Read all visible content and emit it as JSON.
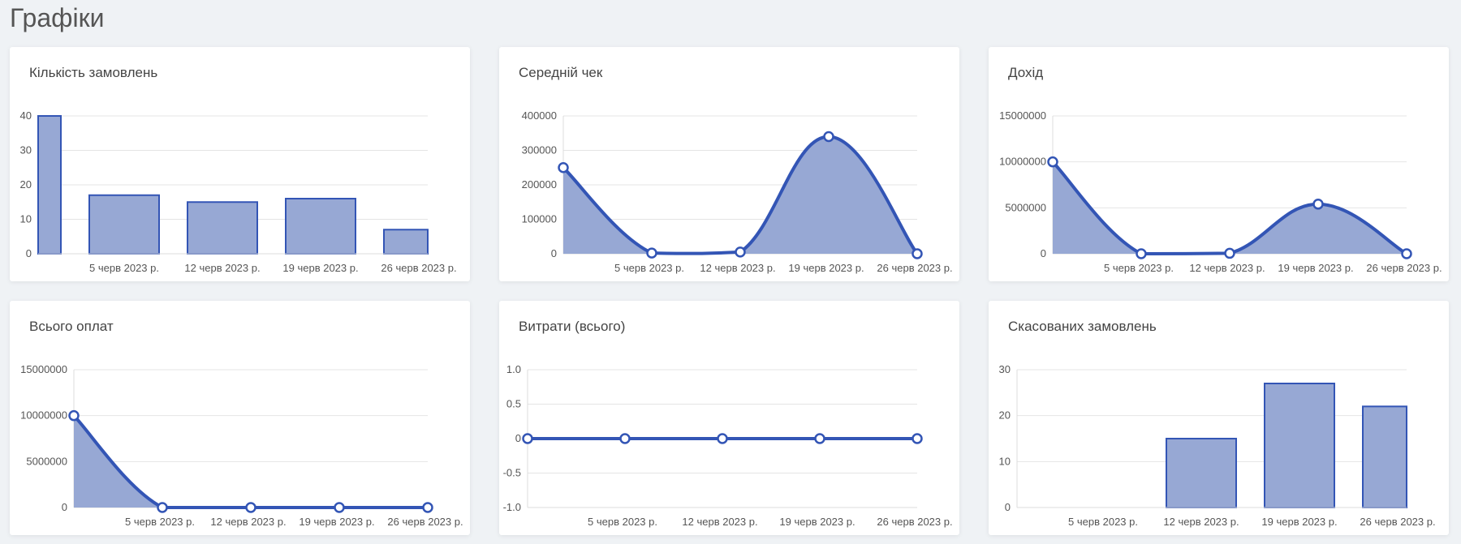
{
  "page": {
    "title": "Графіки"
  },
  "chart_data": [
    {
      "id": "orders",
      "type": "bar",
      "title": "Кількість замовлень",
      "categories": [
        "",
        "5 черв 2023 р.",
        "12 черв 2023 р.",
        "19 черв 2023 р.",
        "26 черв 2023 р."
      ],
      "values": [
        40,
        17,
        15,
        16,
        7
      ],
      "yticks": [
        "40",
        "30",
        "20",
        "10",
        "0"
      ],
      "ylim": [
        0,
        40
      ],
      "fill": "#97a8d4",
      "stroke": "#3355b5"
    },
    {
      "id": "avg-check",
      "type": "area",
      "title": "Середній чек",
      "categories": [
        "",
        "5 черв 2023 р.",
        "12 черв 2023 р.",
        "19 черв 2023 р.",
        "26 черв 2023 р."
      ],
      "values": [
        250000,
        2000,
        5000,
        340000,
        0
      ],
      "yticks": [
        "400000",
        "300000",
        "200000",
        "100000",
        "0"
      ],
      "ylim": [
        0,
        400000
      ],
      "fill": "#97a8d4",
      "stroke": "#3355b5"
    },
    {
      "id": "income",
      "type": "area",
      "title": "Дохід",
      "categories": [
        "",
        "5 черв 2023 р.",
        "12 черв 2023 р.",
        "19 черв 2023 р.",
        "26 черв 2023 р."
      ],
      "values": [
        10000000,
        0,
        50000,
        5400000,
        0
      ],
      "yticks": [
        "15000000",
        "10000000",
        "5000000",
        "0"
      ],
      "ylim": [
        0,
        15000000
      ],
      "fill": "#97a8d4",
      "stroke": "#3355b5"
    },
    {
      "id": "payments",
      "type": "area",
      "title": "Всього оплат",
      "categories": [
        "",
        "5 черв 2023 р.",
        "12 черв 2023 р.",
        "19 черв 2023 р.",
        "26 черв 2023 р."
      ],
      "values": [
        10000000,
        0,
        0,
        0,
        0
      ],
      "yticks": [
        "15000000",
        "10000000",
        "5000000",
        "0"
      ],
      "ylim": [
        0,
        15000000
      ],
      "fill": "#97a8d4",
      "stroke": "#3355b5"
    },
    {
      "id": "expenses",
      "type": "line",
      "title": "Витрати (всього)",
      "categories": [
        "",
        "5 черв 2023 р.",
        "12 черв 2023 р.",
        "19 черв 2023 р.",
        "26 черв 2023 р."
      ],
      "values": [
        0,
        0,
        0,
        0,
        0
      ],
      "yticks": [
        "1.0",
        "0.5",
        "0",
        "-0.5",
        "-1.0"
      ],
      "ylim": [
        -1,
        1
      ],
      "fill": "#97a8d4",
      "stroke": "#3355b5"
    },
    {
      "id": "cancelled",
      "type": "bar",
      "title": "Скасованих замовлень",
      "categories": [
        "",
        "5 черв 2023 р.",
        "12 черв 2023 р.",
        "19 черв 2023 р.",
        "26 черв 2023 р."
      ],
      "values": [
        0,
        0,
        15,
        27,
        22
      ],
      "yticks": [
        "30",
        "20",
        "10",
        "0"
      ],
      "ylim": [
        0,
        30
      ],
      "fill": "#97a8d4",
      "stroke": "#3355b5"
    }
  ]
}
